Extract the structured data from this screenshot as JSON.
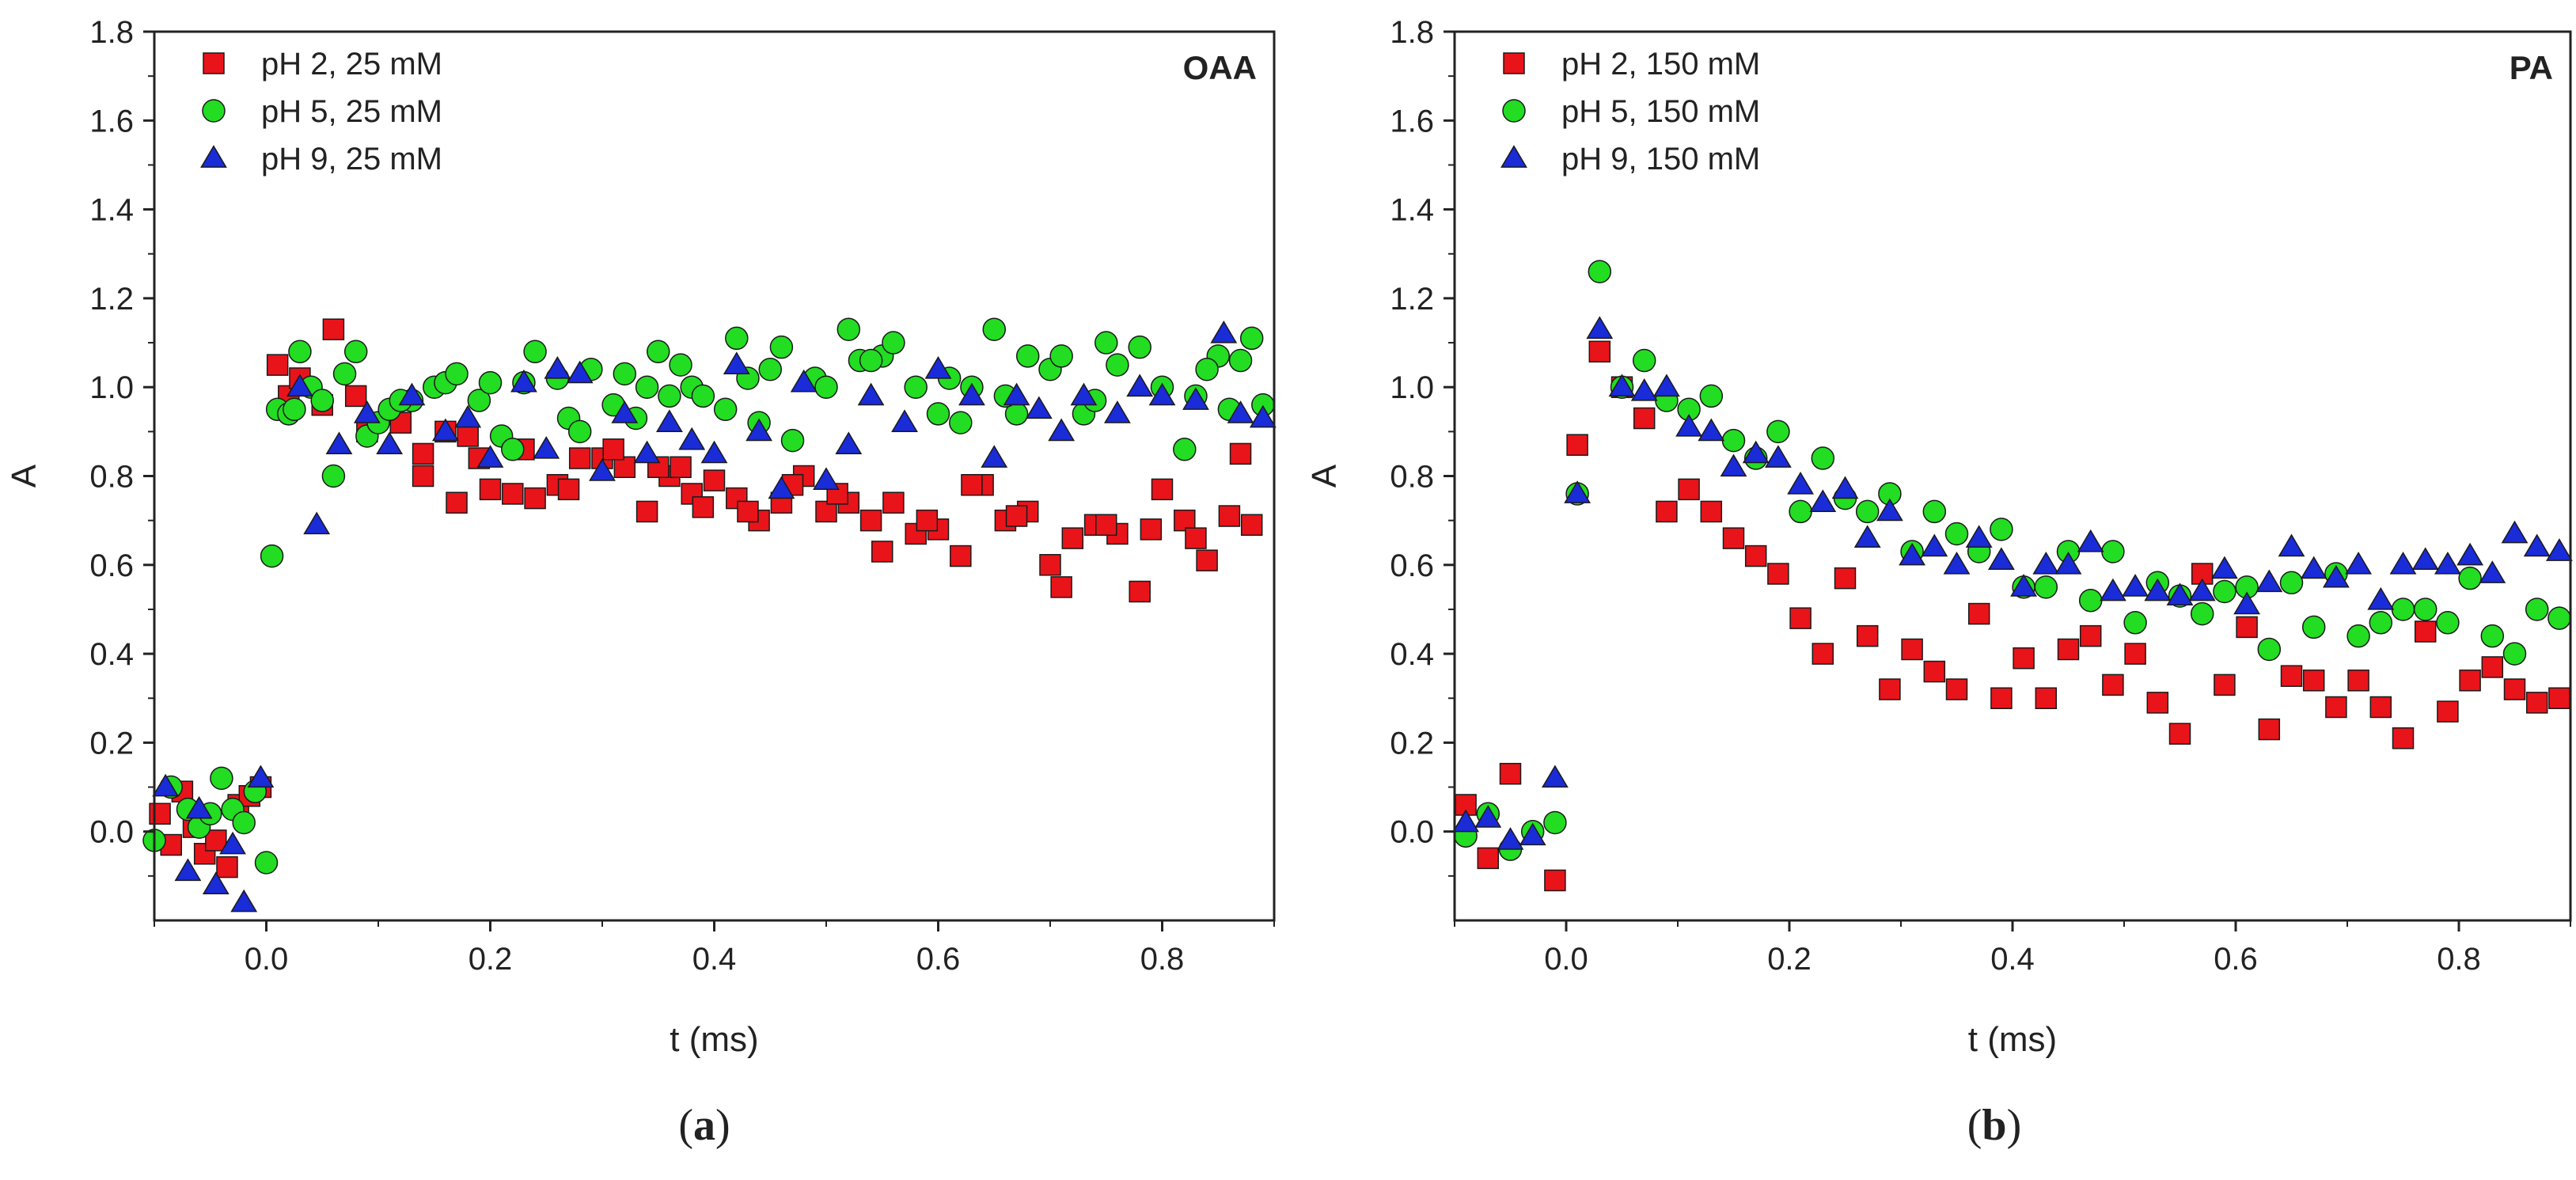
{
  "chart_data": [
    {
      "id": "a",
      "type": "scatter",
      "tag": "OAA",
      "caption_letter": "a",
      "xlabel": "t (ms)",
      "ylabel": "A",
      "xlim": [
        -0.1,
        0.9
      ],
      "ylim": [
        -0.2,
        1.8
      ],
      "xticks": [
        0.0,
        0.2,
        0.4,
        0.6,
        0.8
      ],
      "xtick_labels": [
        "0.0",
        "0.2",
        "0.4",
        "0.6",
        "0.8"
      ],
      "yticks": [
        0.0,
        0.2,
        0.4,
        0.6,
        0.8,
        1.0,
        1.2,
        1.4,
        1.6,
        1.8
      ],
      "ytick_labels": [
        "0.0",
        "0.2",
        "0.4",
        "0.6",
        "0.8",
        "1.0",
        "1.2",
        "1.4",
        "1.6",
        "1.8"
      ],
      "legend_position": "top-left",
      "series": [
        {
          "name": "pH 2, 25 mM",
          "marker": "square",
          "color": "#e8141a",
          "x": [
            -0.095,
            -0.085,
            -0.075,
            -0.065,
            -0.055,
            -0.045,
            -0.035,
            -0.025,
            -0.015,
            -0.005,
            0.01,
            0.02,
            0.03,
            0.05,
            0.06,
            0.08,
            0.09,
            0.12,
            0.14,
            0.16,
            0.17,
            0.19,
            0.2,
            0.22,
            0.24,
            0.26,
            0.28,
            0.3,
            0.32,
            0.34,
            0.36,
            0.37,
            0.38,
            0.4,
            0.42,
            0.44,
            0.46,
            0.48,
            0.5,
            0.52,
            0.54,
            0.56,
            0.58,
            0.6,
            0.62,
            0.64,
            0.66,
            0.68,
            0.7,
            0.72,
            0.74,
            0.76,
            0.78,
            0.8,
            0.82,
            0.84,
            0.86,
            0.88,
            0.14,
            0.18,
            0.23,
            0.27,
            0.31,
            0.35,
            0.39,
            0.43,
            0.47,
            0.51,
            0.55,
            0.59,
            0.63,
            0.67,
            0.71,
            0.75,
            0.79,
            0.83,
            0.87
          ],
          "y": [
            0.04,
            -0.03,
            0.09,
            0.01,
            -0.05,
            -0.02,
            -0.08,
            0.06,
            0.08,
            0.1,
            1.05,
            0.98,
            1.02,
            0.96,
            1.13,
            0.98,
            0.9,
            0.92,
            0.85,
            0.9,
            0.74,
            0.84,
            0.77,
            0.76,
            0.75,
            0.78,
            0.84,
            0.84,
            0.82,
            0.72,
            0.8,
            0.82,
            0.76,
            0.79,
            0.75,
            0.7,
            0.74,
            0.8,
            0.72,
            0.74,
            0.7,
            0.74,
            0.67,
            0.68,
            0.62,
            0.78,
            0.7,
            0.72,
            0.6,
            0.66,
            0.69,
            0.67,
            0.54,
            0.77,
            0.7,
            0.61,
            0.71,
            0.69,
            0.8,
            0.89,
            0.86,
            0.77,
            0.86,
            0.82,
            0.73,
            0.72,
            0.78,
            0.76,
            0.63,
            0.7,
            0.78,
            0.71,
            0.55,
            0.69,
            0.68,
            0.66,
            0.85
          ]
        },
        {
          "name": "pH 5, 25 mM",
          "marker": "circle",
          "color": "#22dd22",
          "x": [
            -0.1,
            -0.085,
            -0.07,
            -0.06,
            -0.05,
            -0.04,
            -0.03,
            -0.02,
            -0.01,
            0.0,
            0.005,
            0.01,
            0.02,
            0.03,
            0.04,
            0.05,
            0.06,
            0.07,
            0.08,
            0.09,
            0.1,
            0.11,
            0.13,
            0.15,
            0.16,
            0.17,
            0.19,
            0.2,
            0.21,
            0.23,
            0.24,
            0.26,
            0.27,
            0.28,
            0.29,
            0.31,
            0.33,
            0.34,
            0.35,
            0.37,
            0.38,
            0.39,
            0.41,
            0.42,
            0.43,
            0.45,
            0.46,
            0.47,
            0.49,
            0.5,
            0.52,
            0.53,
            0.55,
            0.56,
            0.58,
            0.6,
            0.61,
            0.63,
            0.65,
            0.67,
            0.68,
            0.7,
            0.71,
            0.73,
            0.75,
            0.76,
            0.78,
            0.8,
            0.82,
            0.83,
            0.85,
            0.86,
            0.87,
            0.88,
            0.89,
            0.025,
            0.12,
            0.22,
            0.32,
            0.36,
            0.44,
            0.54,
            0.62,
            0.66,
            0.74,
            0.84
          ],
          "y": [
            -0.02,
            0.1,
            0.05,
            0.01,
            0.04,
            0.12,
            0.05,
            0.02,
            0.09,
            -0.07,
            0.62,
            0.95,
            0.94,
            1.08,
            1.0,
            0.97,
            0.8,
            1.03,
            1.08,
            0.89,
            0.92,
            0.95,
            0.97,
            1.0,
            1.01,
            1.03,
            0.97,
            1.01,
            0.89,
            1.01,
            1.08,
            1.02,
            0.93,
            0.9,
            1.04,
            0.96,
            0.93,
            1.0,
            1.08,
            1.05,
            1.0,
            0.98,
            0.95,
            1.11,
            1.02,
            1.04,
            1.09,
            0.88,
            1.02,
            1.0,
            1.13,
            1.06,
            1.07,
            1.1,
            1.0,
            0.94,
            1.02,
            1.0,
            1.13,
            0.94,
            1.07,
            1.04,
            1.07,
            0.94,
            1.1,
            1.05,
            1.09,
            1.0,
            0.86,
            0.98,
            1.07,
            0.95,
            1.06,
            1.11,
            0.96,
            0.95,
            0.97,
            0.86,
            1.03,
            0.98,
            0.92,
            1.06,
            0.92,
            0.98,
            0.97,
            1.04
          ]
        },
        {
          "name": "pH 9, 25 mM",
          "marker": "triangle",
          "color": "#1a2bd8",
          "x": [
            -0.09,
            -0.07,
            -0.06,
            -0.045,
            -0.03,
            -0.02,
            -0.005,
            0.03,
            0.045,
            0.065,
            0.09,
            0.11,
            0.13,
            0.16,
            0.18,
            0.2,
            0.23,
            0.25,
            0.26,
            0.28,
            0.3,
            0.32,
            0.34,
            0.36,
            0.38,
            0.4,
            0.42,
            0.44,
            0.46,
            0.48,
            0.5,
            0.52,
            0.54,
            0.57,
            0.6,
            0.63,
            0.65,
            0.67,
            0.69,
            0.71,
            0.73,
            0.76,
            0.78,
            0.8,
            0.83,
            0.855,
            0.87,
            0.89
          ],
          "y": [
            0.1,
            -0.09,
            0.05,
            -0.12,
            -0.03,
            -0.16,
            0.12,
            1.0,
            0.69,
            0.87,
            0.94,
            0.87,
            0.98,
            0.9,
            0.93,
            0.84,
            1.01,
            0.86,
            1.04,
            1.03,
            0.81,
            0.94,
            0.85,
            0.92,
            0.88,
            0.85,
            1.05,
            0.9,
            0.77,
            1.01,
            0.79,
            0.87,
            0.98,
            0.92,
            1.04,
            0.98,
            0.84,
            0.98,
            0.95,
            0.9,
            0.98,
            0.94,
            1.0,
            0.98,
            0.97,
            1.12,
            0.94,
            0.93
          ]
        }
      ]
    },
    {
      "id": "b",
      "type": "scatter",
      "tag": "PA",
      "caption_letter": "b",
      "xlabel": "t (ms)",
      "ylabel": "A",
      "xlim": [
        -0.1,
        0.9
      ],
      "ylim": [
        -0.2,
        1.8
      ],
      "xticks": [
        0.0,
        0.2,
        0.4,
        0.6,
        0.8
      ],
      "xtick_labels": [
        "0.0",
        "0.2",
        "0.4",
        "0.6",
        "0.8"
      ],
      "yticks": [
        0.0,
        0.2,
        0.4,
        0.6,
        0.8,
        1.0,
        1.2,
        1.4,
        1.6,
        1.8
      ],
      "ytick_labels": [
        "0.0",
        "0.2",
        "0.4",
        "0.6",
        "0.8",
        "1.0",
        "1.2",
        "1.4",
        "1.6",
        "1.8"
      ],
      "legend_position": "top-left",
      "series": [
        {
          "name": "pH 2, 150 mM",
          "marker": "square",
          "color": "#e8141a",
          "x": [
            -0.09,
            -0.07,
            -0.05,
            -0.01,
            0.01,
            0.03,
            0.05,
            0.07,
            0.09,
            0.11,
            0.13,
            0.15,
            0.17,
            0.19,
            0.21,
            0.23,
            0.25,
            0.27,
            0.29,
            0.31,
            0.33,
            0.35,
            0.37,
            0.39,
            0.41,
            0.43,
            0.45,
            0.47,
            0.49,
            0.51,
            0.53,
            0.55,
            0.57,
            0.59,
            0.61,
            0.63,
            0.65,
            0.67,
            0.69,
            0.71,
            0.73,
            0.75,
            0.77,
            0.79,
            0.81,
            0.83,
            0.85,
            0.87,
            0.89
          ],
          "y": [
            0.06,
            -0.06,
            0.13,
            -0.11,
            0.87,
            1.08,
            1.0,
            0.93,
            0.72,
            0.77,
            0.72,
            0.66,
            0.62,
            0.58,
            0.48,
            0.4,
            0.57,
            0.44,
            0.32,
            0.41,
            0.36,
            0.32,
            0.49,
            0.3,
            0.39,
            0.3,
            0.41,
            0.44,
            0.33,
            0.4,
            0.29,
            0.22,
            0.58,
            0.33,
            0.46,
            0.23,
            0.35,
            0.34,
            0.28,
            0.34,
            0.28,
            0.21,
            0.45,
            0.27,
            0.34,
            0.37,
            0.32,
            0.29,
            0.3
          ]
        },
        {
          "name": "pH 5, 150 mM",
          "marker": "circle",
          "color": "#22dd22",
          "x": [
            -0.09,
            -0.07,
            -0.05,
            -0.03,
            -0.01,
            0.01,
            0.03,
            0.05,
            0.07,
            0.09,
            0.11,
            0.13,
            0.15,
            0.17,
            0.19,
            0.21,
            0.23,
            0.25,
            0.27,
            0.29,
            0.31,
            0.33,
            0.35,
            0.37,
            0.39,
            0.41,
            0.43,
            0.45,
            0.47,
            0.49,
            0.51,
            0.53,
            0.55,
            0.57,
            0.59,
            0.61,
            0.63,
            0.65,
            0.67,
            0.69,
            0.71,
            0.73,
            0.75,
            0.77,
            0.79,
            0.81,
            0.83,
            0.85,
            0.87,
            0.89
          ],
          "y": [
            -0.01,
            0.04,
            -0.04,
            0.0,
            0.02,
            0.76,
            1.26,
            1.0,
            1.06,
            0.97,
            0.95,
            0.98,
            0.88,
            0.84,
            0.9,
            0.72,
            0.84,
            0.75,
            0.72,
            0.76,
            0.63,
            0.72,
            0.67,
            0.63,
            0.68,
            0.55,
            0.55,
            0.63,
            0.52,
            0.63,
            0.47,
            0.56,
            0.53,
            0.49,
            0.54,
            0.55,
            0.41,
            0.56,
            0.46,
            0.58,
            0.44,
            0.47,
            0.5,
            0.5,
            0.47,
            0.57,
            0.44,
            0.4,
            0.5,
            0.48
          ]
        },
        {
          "name": "pH 9, 150 mM",
          "marker": "triangle",
          "color": "#1a2bd8",
          "x": [
            -0.09,
            -0.07,
            -0.05,
            -0.03,
            -0.01,
            0.01,
            0.03,
            0.05,
            0.07,
            0.09,
            0.11,
            0.13,
            0.15,
            0.17,
            0.19,
            0.21,
            0.23,
            0.25,
            0.27,
            0.29,
            0.31,
            0.33,
            0.35,
            0.37,
            0.39,
            0.41,
            0.43,
            0.45,
            0.47,
            0.49,
            0.51,
            0.53,
            0.55,
            0.57,
            0.59,
            0.61,
            0.63,
            0.65,
            0.67,
            0.69,
            0.71,
            0.73,
            0.75,
            0.77,
            0.79,
            0.81,
            0.83,
            0.85,
            0.87,
            0.89
          ],
          "y": [
            0.02,
            0.03,
            -0.02,
            -0.01,
            0.12,
            0.76,
            1.13,
            1.0,
            0.99,
            1.0,
            0.91,
            0.9,
            0.82,
            0.85,
            0.84,
            0.78,
            0.74,
            0.77,
            0.66,
            0.72,
            0.62,
            0.64,
            0.6,
            0.66,
            0.61,
            0.55,
            0.6,
            0.6,
            0.65,
            0.54,
            0.55,
            0.54,
            0.53,
            0.54,
            0.59,
            0.51,
            0.56,
            0.64,
            0.59,
            0.57,
            0.6,
            0.52,
            0.6,
            0.61,
            0.6,
            0.62,
            0.58,
            0.67,
            0.64,
            0.63
          ]
        }
      ]
    }
  ]
}
